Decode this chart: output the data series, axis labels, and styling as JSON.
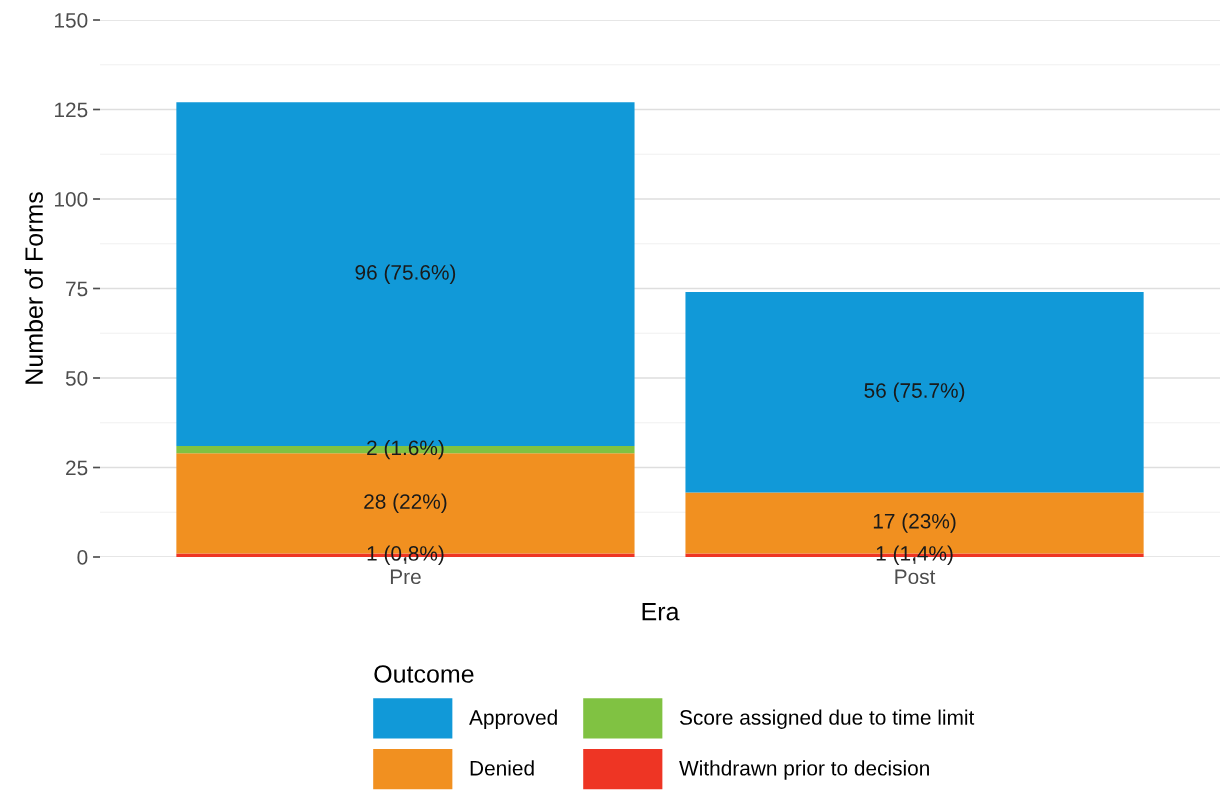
{
  "chart_data": {
    "type": "bar",
    "stacked": true,
    "xlabel": "Era",
    "ylabel": "Number of Forms",
    "legend_title": "Outcome",
    "categories": [
      "Pre",
      "Post"
    ],
    "series": [
      {
        "name": "Withdrawn prior to decision",
        "color": "#ee3524",
        "values": [
          1,
          1
        ],
        "value_labels": [
          "1 (0.8%)",
          "1 (1.4%)"
        ]
      },
      {
        "name": "Denied",
        "color": "#f19020",
        "values": [
          28,
          17
        ],
        "value_labels": [
          "28 (22%)",
          "17 (23%)"
        ]
      },
      {
        "name": "Score assigned due to time limit",
        "color": "#80c242",
        "values": [
          2,
          0
        ],
        "value_labels": [
          "2 (1.6%)",
          null
        ]
      },
      {
        "name": "Approved",
        "color": "#1199d8",
        "values": [
          96,
          56
        ],
        "value_labels": [
          "96 (75.6%)",
          "56 (75.7%)"
        ]
      }
    ],
    "ylim": [
      0,
      150
    ],
    "yticks": [
      0,
      25,
      50,
      75,
      100,
      125,
      150
    ],
    "grid": "y",
    "legend": "bottom"
  }
}
